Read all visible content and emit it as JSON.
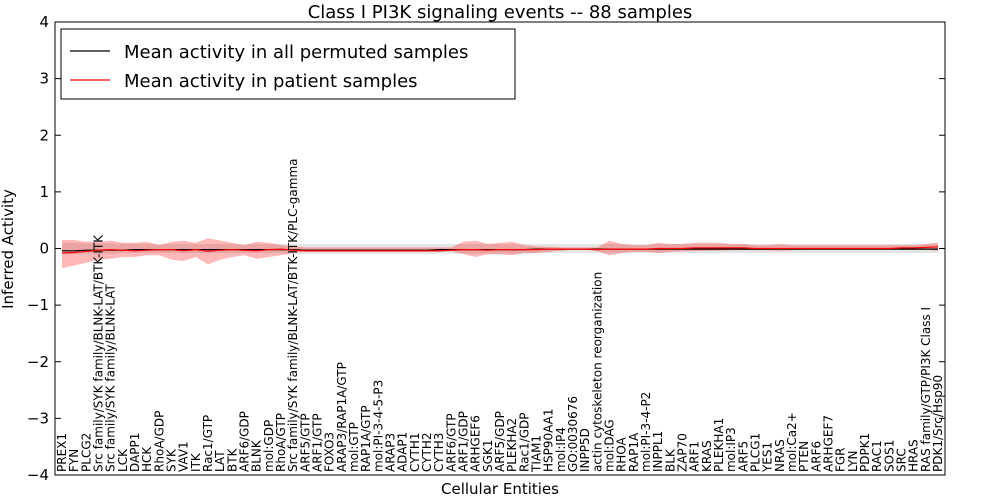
{
  "chart_data": {
    "type": "line",
    "title": "Class I PI3K signaling events -- 88 samples",
    "xlabel": "Cellular Entities",
    "ylabel": "Inferred Activity",
    "ylim": [
      -4,
      4
    ],
    "yticks": [
      "−4",
      "−3",
      "−2",
      "−1",
      "0",
      "1",
      "2",
      "3",
      "4"
    ],
    "yticks_values": [
      -4,
      -3,
      -2,
      -1,
      0,
      1,
      2,
      3,
      4
    ],
    "legend_position": "upper-left",
    "grid": false,
    "categories": [
      "PREX1",
      "FYN",
      "PLCG2",
      "Src family/SYK family/BLNK-LAT/BTK-ITK",
      "Src family/SYK family/BLNK-LAT",
      "LCK",
      "DAPP1",
      "HCK",
      "RhoA/GDP",
      "SYK",
      "VAV1",
      "ITK",
      "Rac1/GTP",
      "LAT",
      "BTK",
      "ARF6/GDP",
      "BLNK",
      "mol:GDP",
      "RhoA/GTP",
      "Src family/SYK family/BLNK-LAT/BTK-ITK/PLC-gamma",
      "ARF5/GTP",
      "ARF1/GTP",
      "FOXO3",
      "ARAP3/RAP1A/GTP",
      "mol:GTP",
      "RAP1A/GTP",
      "mol:PI-3-4-5-P3",
      "ARAP3",
      "ADAP1",
      "CYTH1",
      "CYTH2",
      "CYTH3",
      "ARF6/GTP",
      "ARF1/GDP",
      "ARHGEF6",
      "SGK1",
      "ARF5/GDP",
      "PLEKHA2",
      "Rac1/GDP",
      "TIAM1",
      "HSP90AA1",
      "mol:IP4",
      "GO:0030676",
      "INPP5D",
      "actin cytoskeleton reorganization",
      "mol:DAG",
      "RHOA",
      "RAP1A",
      "mol:PI-3-4-P2",
      "INPPL1",
      "BLK",
      "ZAP70",
      "ARF1",
      "KRAS",
      "PLEKHA1",
      "mol:IP3",
      "ARF5",
      "PLCG1",
      "YES1",
      "NRAS",
      "mol:Ca2+",
      "PTEN",
      "ARF6",
      "ARHGEF7",
      "FGR",
      "LYN",
      "PDPK1",
      "RAC1",
      "SOS1",
      "SRC",
      "HRAS",
      "RAS family/GTP/PI3K Class I",
      "PDK1/Src/Hsp90"
    ],
    "series": [
      {
        "name": "Mean activity in all permuted samples",
        "color": "#000000",
        "values": [
          -0.04,
          -0.04,
          -0.03,
          -0.03,
          -0.03,
          -0.03,
          -0.02,
          -0.02,
          -0.02,
          -0.02,
          -0.02,
          -0.02,
          -0.02,
          -0.02,
          -0.02,
          -0.02,
          -0.02,
          -0.02,
          -0.02,
          -0.02,
          -0.03,
          -0.03,
          -0.03,
          -0.03,
          -0.03,
          -0.03,
          -0.03,
          -0.03,
          -0.03,
          -0.03,
          -0.03,
          -0.02,
          -0.02,
          -0.02,
          -0.02,
          -0.02,
          -0.02,
          -0.02,
          -0.02,
          -0.01,
          -0.01,
          -0.01,
          -0.01,
          -0.01,
          -0.01,
          -0.01,
          -0.01,
          -0.01,
          -0.01,
          -0.01,
          -0.01,
          -0.01,
          -0.01,
          -0.01,
          -0.01,
          -0.01,
          -0.01,
          -0.01,
          -0.01,
          -0.01,
          -0.01,
          -0.01,
          -0.01,
          -0.01,
          -0.01,
          -0.01,
          -0.01,
          -0.01,
          -0.01,
          -0.01,
          -0.01,
          -0.01,
          -0.01
        ],
        "band_low": [
          -0.1,
          -0.1,
          -0.09,
          -0.09,
          -0.09,
          -0.08,
          -0.08,
          -0.08,
          -0.08,
          -0.08,
          -0.08,
          -0.08,
          -0.08,
          -0.08,
          -0.08,
          -0.08,
          -0.08,
          -0.08,
          -0.08,
          -0.1,
          -0.1,
          -0.1,
          -0.1,
          -0.1,
          -0.1,
          -0.1,
          -0.1,
          -0.1,
          -0.1,
          -0.1,
          -0.1,
          -0.09,
          -0.09,
          -0.09,
          -0.09,
          -0.09,
          -0.09,
          -0.09,
          -0.09,
          -0.09,
          -0.08,
          -0.08,
          -0.08,
          -0.08,
          -0.08,
          -0.08,
          -0.08,
          -0.08,
          -0.08,
          -0.08,
          -0.08,
          -0.08,
          -0.08,
          -0.08,
          -0.08,
          -0.08,
          -0.08,
          -0.08,
          -0.08,
          -0.08,
          -0.08,
          -0.08,
          -0.08,
          -0.08,
          -0.08,
          -0.08,
          -0.08,
          -0.08,
          -0.08,
          -0.08,
          -0.08,
          -0.08,
          -0.08
        ],
        "band_high": [
          0.1,
          0.1,
          0.09,
          0.09,
          0.09,
          0.08,
          0.08,
          0.08,
          0.08,
          0.08,
          0.08,
          0.08,
          0.08,
          0.08,
          0.08,
          0.08,
          0.08,
          0.08,
          0.08,
          0.08,
          0.08,
          0.08,
          0.08,
          0.08,
          0.08,
          0.08,
          0.08,
          0.08,
          0.08,
          0.08,
          0.08,
          0.08,
          0.08,
          0.08,
          0.08,
          0.08,
          0.08,
          0.08,
          0.08,
          0.08,
          0.08,
          0.08,
          0.08,
          0.08,
          0.08,
          0.08,
          0.08,
          0.08,
          0.08,
          0.08,
          0.08,
          0.08,
          0.08,
          0.08,
          0.08,
          0.08,
          0.08,
          0.08,
          0.08,
          0.08,
          0.08,
          0.08,
          0.08,
          0.08,
          0.08,
          0.08,
          0.08,
          0.08,
          0.08,
          0.08,
          0.08,
          0.08,
          0.08
        ]
      },
      {
        "name": "Mean activity in patient samples",
        "color": "#ff0000",
        "values": [
          -0.08,
          -0.07,
          -0.05,
          -0.03,
          -0.02,
          -0.03,
          -0.04,
          -0.03,
          -0.02,
          -0.02,
          -0.04,
          -0.02,
          -0.05,
          -0.03,
          -0.02,
          -0.03,
          -0.04,
          -0.02,
          -0.01,
          -0.03,
          -0.04,
          -0.04,
          -0.04,
          -0.04,
          -0.04,
          -0.04,
          -0.04,
          -0.04,
          -0.04,
          -0.04,
          -0.04,
          -0.04,
          -0.03,
          -0.02,
          -0.02,
          -0.03,
          -0.02,
          -0.02,
          -0.02,
          -0.02,
          -0.01,
          -0.01,
          -0.01,
          -0.01,
          -0.02,
          -0.01,
          -0.01,
          -0.01,
          -0.01,
          0.0,
          0.0,
          0.0,
          0.01,
          0.01,
          0.01,
          0.01,
          0.01,
          0.0,
          0.0,
          0.0,
          0.0,
          0.0,
          0.0,
          0.0,
          0.0,
          0.0,
          0.0,
          0.0,
          0.0,
          0.01,
          0.01,
          0.02,
          0.03
        ],
        "band_low": [
          -0.35,
          -0.3,
          -0.25,
          -0.2,
          -0.18,
          -0.15,
          -0.15,
          -0.12,
          -0.12,
          -0.2,
          -0.22,
          -0.15,
          -0.28,
          -0.2,
          -0.15,
          -0.12,
          -0.18,
          -0.15,
          -0.12,
          -0.08,
          -0.06,
          -0.06,
          -0.06,
          -0.06,
          -0.06,
          -0.06,
          -0.06,
          -0.06,
          -0.06,
          -0.06,
          -0.06,
          -0.06,
          -0.05,
          -0.1,
          -0.15,
          -0.1,
          -0.1,
          -0.12,
          -0.08,
          -0.08,
          -0.06,
          -0.04,
          -0.02,
          -0.02,
          -0.05,
          -0.12,
          -0.08,
          -0.06,
          -0.06,
          -0.08,
          -0.06,
          -0.05,
          -0.05,
          -0.04,
          -0.04,
          -0.03,
          -0.03,
          -0.03,
          -0.03,
          -0.04,
          -0.03,
          -0.02,
          -0.02,
          -0.02,
          -0.02,
          -0.02,
          -0.02,
          -0.02,
          -0.02,
          -0.02,
          -0.02,
          -0.02,
          -0.04
        ],
        "band_high": [
          0.15,
          0.15,
          0.12,
          0.12,
          0.14,
          0.1,
          0.1,
          0.12,
          0.06,
          0.12,
          0.14,
          0.1,
          0.18,
          0.14,
          0.1,
          0.06,
          0.12,
          0.1,
          0.06,
          0.04,
          0.02,
          0.02,
          0.02,
          0.02,
          0.02,
          0.02,
          0.02,
          0.02,
          0.02,
          0.02,
          0.02,
          0.02,
          0.02,
          0.12,
          0.14,
          0.08,
          0.1,
          0.12,
          0.06,
          0.04,
          0.03,
          0.02,
          0.02,
          0.02,
          0.02,
          0.14,
          0.08,
          0.06,
          0.06,
          0.1,
          0.08,
          0.08,
          0.1,
          0.1,
          0.1,
          0.08,
          0.08,
          0.06,
          0.06,
          0.08,
          0.06,
          0.06,
          0.06,
          0.06,
          0.06,
          0.06,
          0.06,
          0.06,
          0.06,
          0.06,
          0.06,
          0.08,
          0.1
        ]
      }
    ]
  }
}
